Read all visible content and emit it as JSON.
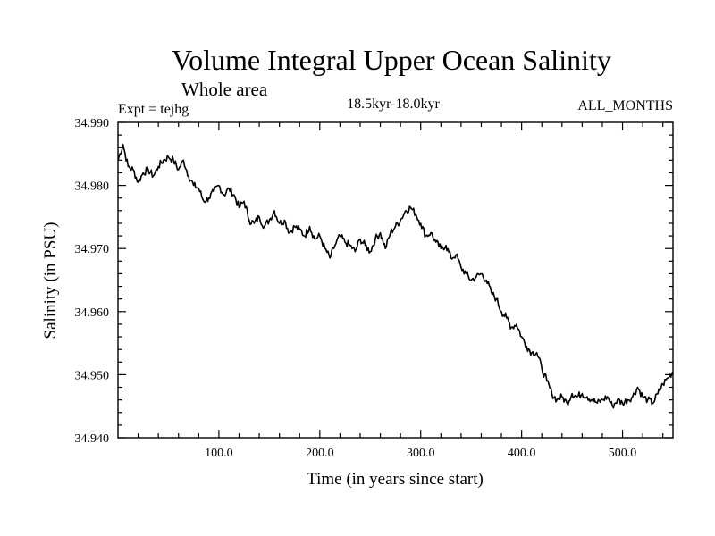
{
  "chart_data": {
    "type": "line",
    "title": "Volume Integral Upper Ocean Salinity",
    "subtitle": "Whole area",
    "left_label": "Expt = tejhg",
    "center_label": "18.5kyr-18.0kyr",
    "right_label": "ALL_MONTHS",
    "xlabel": "Time (in years since start)",
    "ylabel": "Salinity (in PSU)",
    "xlim": [
      0,
      550
    ],
    "ylim": [
      34.94,
      34.99
    ],
    "xticks": [
      100,
      200,
      300,
      400,
      500
    ],
    "xtick_labels": [
      "100.0",
      "200.0",
      "300.0",
      "400.0",
      "500.0"
    ],
    "yticks": [
      34.94,
      34.95,
      34.96,
      34.97,
      34.98,
      34.99
    ],
    "ytick_labels": [
      "34.940",
      "34.950",
      "34.960",
      "34.970",
      "34.980",
      "34.990"
    ],
    "grid": false,
    "series": [
      {
        "name": "salinity",
        "x": [
          0,
          5,
          10,
          15,
          20,
          25,
          30,
          35,
          40,
          45,
          50,
          55,
          60,
          65,
          70,
          75,
          80,
          85,
          90,
          95,
          100,
          105,
          110,
          115,
          120,
          125,
          130,
          135,
          140,
          145,
          150,
          155,
          160,
          165,
          170,
          175,
          180,
          185,
          190,
          195,
          200,
          205,
          210,
          215,
          220,
          225,
          230,
          235,
          240,
          245,
          250,
          255,
          260,
          265,
          270,
          275,
          280,
          285,
          290,
          295,
          300,
          305,
          310,
          315,
          320,
          325,
          330,
          335,
          340,
          345,
          350,
          355,
          360,
          365,
          370,
          375,
          380,
          385,
          390,
          395,
          400,
          405,
          410,
          415,
          420,
          425,
          430,
          435,
          440,
          445,
          450,
          455,
          460,
          465,
          470,
          475,
          480,
          485,
          490,
          495,
          500,
          505,
          510,
          515,
          520,
          525,
          530,
          535,
          540,
          545,
          550
        ],
        "values": [
          34.984,
          34.9865,
          34.983,
          34.9825,
          34.9805,
          34.982,
          34.9825,
          34.9815,
          34.983,
          34.984,
          34.9845,
          34.984,
          34.9825,
          34.984,
          34.9815,
          34.98,
          34.9795,
          34.9775,
          34.978,
          34.979,
          34.98,
          34.9785,
          34.9795,
          34.9785,
          34.9765,
          34.9775,
          34.9745,
          34.974,
          34.975,
          34.9735,
          34.9745,
          34.976,
          34.974,
          34.9745,
          34.9725,
          34.9735,
          34.973,
          34.972,
          34.9735,
          34.9715,
          34.972,
          34.97,
          34.9685,
          34.9705,
          34.972,
          34.971,
          34.9705,
          34.9695,
          34.9715,
          34.9705,
          34.9695,
          34.9715,
          34.9725,
          34.97,
          34.9725,
          34.9735,
          34.9745,
          34.976,
          34.9765,
          34.9755,
          34.974,
          34.972,
          34.9725,
          34.971,
          34.97,
          34.9705,
          34.9685,
          34.969,
          34.967,
          34.966,
          34.965,
          34.9655,
          34.966,
          34.965,
          34.963,
          34.962,
          34.96,
          34.959,
          34.9575,
          34.958,
          34.956,
          34.9545,
          34.9535,
          34.9535,
          34.951,
          34.949,
          34.947,
          34.946,
          34.9465,
          34.9455,
          34.947,
          34.9465,
          34.947,
          34.9465,
          34.946,
          34.9455,
          34.946,
          34.9465,
          34.945,
          34.946,
          34.9455,
          34.946,
          34.9465,
          34.948,
          34.9465,
          34.946,
          34.9455,
          34.947,
          34.9485,
          34.9495,
          34.9505
        ]
      }
    ]
  }
}
